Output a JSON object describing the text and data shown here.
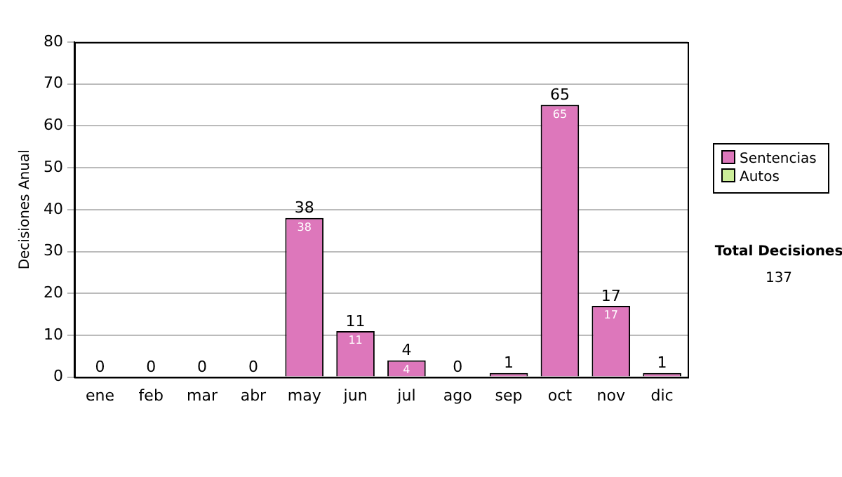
{
  "chart_data": {
    "type": "bar",
    "ylabel": "Decisiones Anual",
    "categories": [
      "ene",
      "feb",
      "mar",
      "abr",
      "may",
      "jun",
      "jul",
      "ago",
      "sep",
      "oct",
      "nov",
      "dic"
    ],
    "stacked": true,
    "series": [
      {
        "name": "Sentencias",
        "color": "#dd77bb",
        "values": [
          0,
          0,
          0,
          0,
          38,
          11,
          4,
          0,
          1,
          65,
          17,
          1
        ],
        "value_labels": [
          null,
          null,
          null,
          null,
          "38",
          "11",
          "4",
          null,
          null,
          "65",
          "17",
          null
        ]
      },
      {
        "name": "Autos",
        "color": "#ccee99",
        "values": [
          0,
          0,
          0,
          0,
          0,
          0,
          0,
          0,
          0,
          0,
          0,
          0
        ]
      }
    ],
    "totals": [
      "0",
      "0",
      "0",
      "0",
      "38",
      "11",
      "4",
      "0",
      "1",
      "65",
      "17",
      "1"
    ],
    "ylim": [
      0,
      80
    ],
    "yticks": [
      0,
      10,
      20,
      30,
      40,
      50,
      60,
      70,
      80
    ],
    "grid": "y",
    "legend": "right",
    "annotations": [
      "Total Decisiones",
      "137"
    ]
  }
}
